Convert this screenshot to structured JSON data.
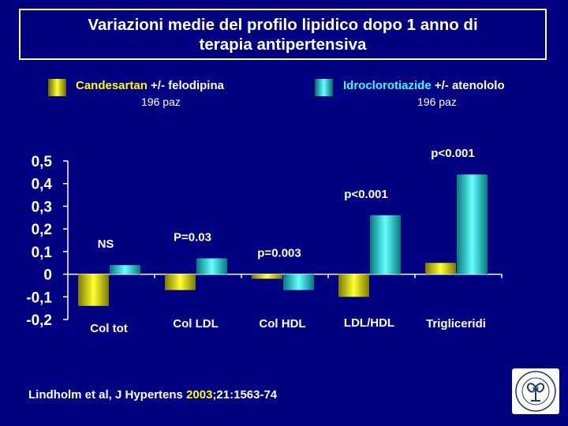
{
  "slide": {
    "title_line1": "Variazioni medie del profilo lipidico dopo 1 anno di",
    "title_line2": "terapia antipertensiva",
    "citation": {
      "authors": "Lindholm et al,  J Hypertens  ",
      "year": "2003",
      "rest": ";21:1563-74"
    },
    "logo_icon": "university-seal-icon"
  },
  "legend": [
    {
      "drug": "Candesartan",
      "rest": " +/- felodipina",
      "n": "196 paz",
      "color": "#e6e600",
      "drug_color": "#ffff00"
    },
    {
      "drug": "Idroclorotiazide",
      "rest": " +/- atenololo",
      "n": "196 paz",
      "color": "#22d0d0",
      "drug_color": "#33ffff"
    }
  ],
  "chart_data": {
    "type": "bar",
    "categories": [
      "Col tot",
      "Col LDL",
      "Col HDL",
      "LDL/HDL",
      "Trigliceridi"
    ],
    "series": [
      {
        "name": "Candesartan +/- felodipina",
        "values": [
          -0.14,
          -0.07,
          -0.02,
          -0.1,
          0.05
        ],
        "color": "#e6e600"
      },
      {
        "name": "Idroclorotiazide +/- atenololo",
        "values": [
          0.04,
          0.07,
          -0.07,
          0.26,
          0.44
        ],
        "color": "#22d0d0"
      }
    ],
    "annotations": [
      "NS",
      "P=0.03",
      "p=0.003",
      "p<0.001",
      "p<0.001"
    ],
    "ylim": [
      -0.2,
      0.5
    ],
    "yticks": [
      "0,5",
      "0,4",
      "0,3",
      "0,2",
      "0,1",
      "0",
      "-0,1",
      "-0,2"
    ],
    "ytick_values": [
      0.5,
      0.4,
      0.3,
      0.2,
      0.1,
      0,
      -0.1,
      -0.2
    ],
    "xlabel": "",
    "ylabel": "",
    "grid": false
  }
}
